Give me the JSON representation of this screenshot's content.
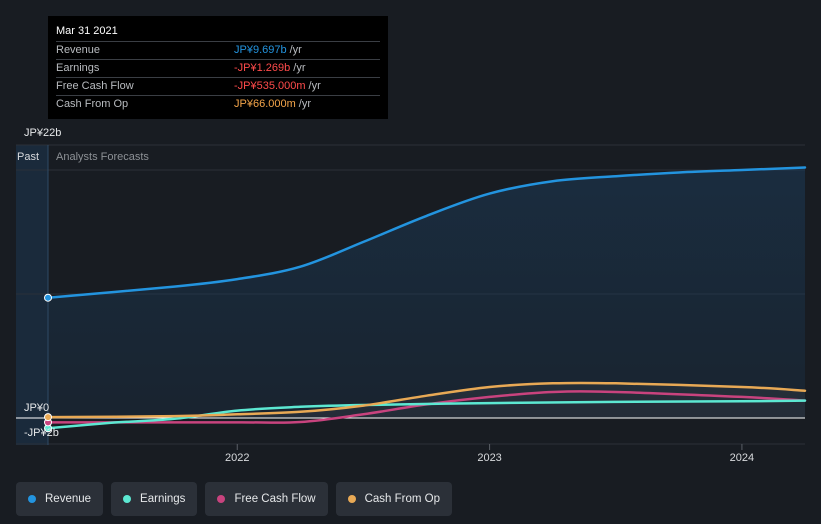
{
  "tooltip": {
    "date": "Mar 31 2021",
    "rows": [
      {
        "label": "Revenue",
        "value": "JP¥9.697b",
        "unit": "/yr",
        "color": "#2394df"
      },
      {
        "label": "Earnings",
        "value": "-JP¥1.269b",
        "unit": "/yr",
        "color": "#ff4b4b"
      },
      {
        "label": "Free Cash Flow",
        "value": "-JP¥535.000m",
        "unit": "/yr",
        "color": "#ff4b4b"
      },
      {
        "label": "Cash From Op",
        "value": "JP¥66.000m",
        "unit": "/yr",
        "color": "#f4a54a"
      }
    ]
  },
  "chart_data": {
    "type": "line",
    "section_labels": {
      "past": "Past",
      "forecast": "Analysts Forecasts"
    },
    "y_tick_labels": {
      "top": "JP¥22b",
      "zero": "JP¥0",
      "negative": "-JP¥2b"
    },
    "ylim": [
      -2,
      22
    ],
    "x_ticks": [
      {
        "label": "2022",
        "x": 2022.0
      },
      {
        "label": "2023",
        "x": 2023.0
      },
      {
        "label": "2024",
        "x": 2024.0
      }
    ],
    "xlim": [
      2021.25,
      2024.25
    ],
    "past_end": 2021.25,
    "series": [
      {
        "name": "Revenue",
        "color": "#2394df",
        "points": [
          [
            2021.25,
            9.7
          ],
          [
            2021.75,
            10.6
          ],
          [
            2022.0,
            11.2
          ],
          [
            2022.25,
            12.2
          ],
          [
            2022.5,
            14.2
          ],
          [
            2022.75,
            16.3
          ],
          [
            2023.0,
            18.1
          ],
          [
            2023.25,
            19.1
          ],
          [
            2023.5,
            19.5
          ],
          [
            2023.75,
            19.8
          ],
          [
            2024.0,
            20.0
          ],
          [
            2024.25,
            20.2
          ]
        ]
      },
      {
        "name": "Earnings",
        "color": "#5ce8d2",
        "points": [
          [
            2021.25,
            -1.27
          ],
          [
            2021.5,
            -0.6
          ],
          [
            2021.75,
            -0.1
          ],
          [
            2022.0,
            0.6
          ],
          [
            2022.25,
            0.9
          ],
          [
            2022.5,
            1.05
          ],
          [
            2023.0,
            1.2
          ],
          [
            2023.5,
            1.3
          ],
          [
            2024.0,
            1.35
          ],
          [
            2024.25,
            1.4
          ]
        ]
      },
      {
        "name": "Free Cash Flow",
        "color": "#c8437e",
        "points": [
          [
            2021.25,
            -0.54
          ],
          [
            2022.0,
            -0.54
          ],
          [
            2022.25,
            -0.5
          ],
          [
            2022.5,
            0.3
          ],
          [
            2022.75,
            1.1
          ],
          [
            2023.0,
            1.7
          ],
          [
            2023.25,
            2.1
          ],
          [
            2023.5,
            2.1
          ],
          [
            2024.0,
            1.7
          ],
          [
            2024.25,
            1.4
          ]
        ]
      },
      {
        "name": "Cash From Op",
        "color": "#e8a955",
        "points": [
          [
            2021.25,
            0.07
          ],
          [
            2021.75,
            0.15
          ],
          [
            2022.0,
            0.3
          ],
          [
            2022.25,
            0.5
          ],
          [
            2022.5,
            1.0
          ],
          [
            2022.75,
            1.8
          ],
          [
            2023.0,
            2.5
          ],
          [
            2023.25,
            2.8
          ],
          [
            2023.5,
            2.8
          ],
          [
            2024.0,
            2.5
          ],
          [
            2024.25,
            2.2
          ]
        ]
      }
    ],
    "gridlines": [
      22,
      20,
      10,
      0,
      -2
    ]
  },
  "legend": [
    {
      "label": "Revenue",
      "color": "#2394df"
    },
    {
      "label": "Earnings",
      "color": "#5ce8d2"
    },
    {
      "label": "Free Cash Flow",
      "color": "#c8437e"
    },
    {
      "label": "Cash From Op",
      "color": "#e8a955"
    }
  ]
}
